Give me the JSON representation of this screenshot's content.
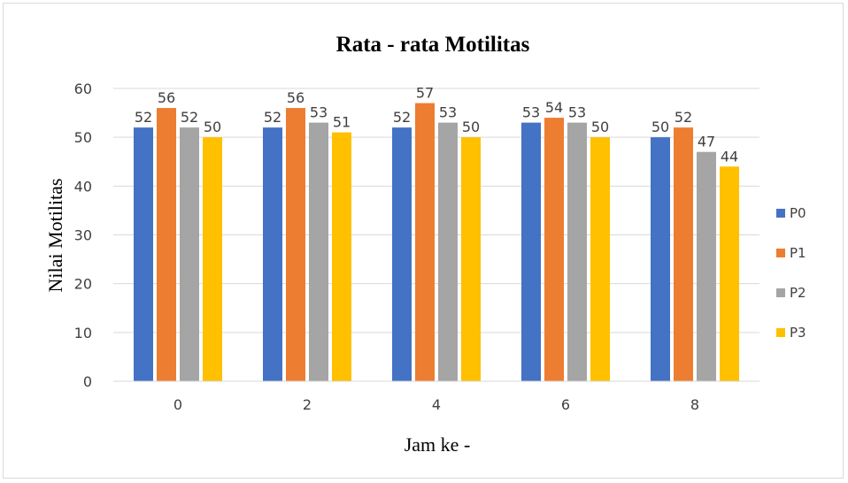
{
  "chart_data": {
    "type": "bar",
    "title": "Rata - rata Motilitas",
    "xlabel": "Jam ke -",
    "ylabel": "Nilai Motilitas",
    "categories": [
      "0",
      "2",
      "4",
      "6",
      "8"
    ],
    "series": [
      {
        "name": "P0",
        "color": "#4472c4",
        "values": [
          52,
          52,
          52,
          53,
          50
        ]
      },
      {
        "name": "P1",
        "color": "#ed7d31",
        "values": [
          56,
          56,
          57,
          54,
          52
        ]
      },
      {
        "name": "P2",
        "color": "#a5a5a5",
        "values": [
          52,
          53,
          53,
          53,
          47
        ]
      },
      {
        "name": "P3",
        "color": "#ffc000",
        "values": [
          50,
          51,
          50,
          50,
          44
        ]
      }
    ],
    "ylim": [
      0,
      60
    ],
    "yticks": [
      0,
      10,
      20,
      30,
      40,
      50,
      60
    ],
    "grid": true,
    "legend": "right"
  }
}
